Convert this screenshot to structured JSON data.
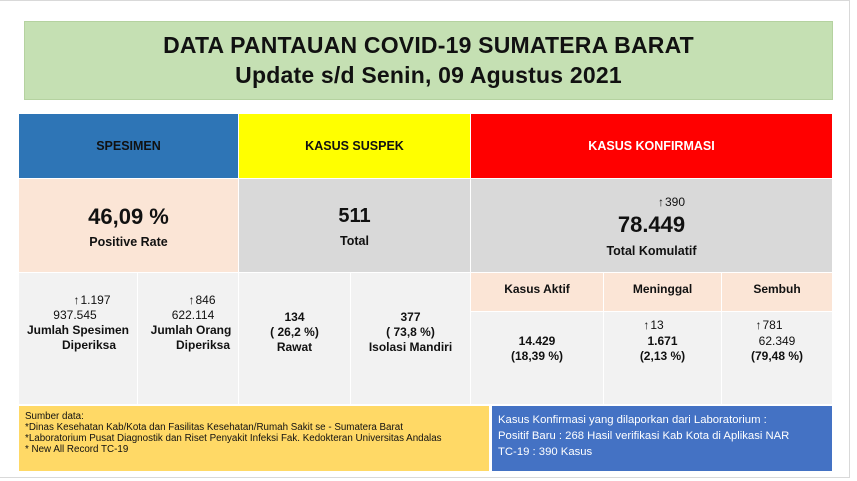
{
  "title": {
    "line1": "DATA PANTAUAN COVID-19 SUMATERA BARAT",
    "line2": "Update s/d Senin, 09 Agustus 2021"
  },
  "headers": {
    "spesimen": "SPESIMEN",
    "suspek": "KASUS SUSPEK",
    "konfirmasi": "KASUS KONFIRMASI"
  },
  "colors": {
    "title_bg": "#c5e0b3",
    "spesimen_header": "#2e75b6",
    "suspek_header": "#ffff00",
    "konfirmasi_header": "#ff0000",
    "source_bg": "#ffd966",
    "nar_bg": "#4472c4"
  },
  "spesimen": {
    "positive_rate": "46,09 %",
    "positive_rate_label": "Positive Rate",
    "jumlah_spesimen": {
      "increase_icon": "arrow-up-icon",
      "increase": "1.197",
      "value": "937.545",
      "label_line1": "Jumlah Spesimen",
      "label_line2": "Diperiksa"
    },
    "jumlah_orang": {
      "increase_icon": "arrow-up-icon",
      "increase": "846",
      "value": "622.114",
      "label_line1": "Jumlah Orang",
      "label_line2": "Diperiksa"
    }
  },
  "suspek": {
    "total": "511",
    "total_label": "Total",
    "rawat": {
      "value": "134",
      "pct": "( 26,2 %)",
      "label": "Rawat"
    },
    "isolasi": {
      "value": "377",
      "pct": "( 73,8 %)",
      "label": "Isolasi Mandiri"
    }
  },
  "konfirmasi": {
    "increase_icon": "arrow-up-icon",
    "increase": "390",
    "total": "78.449",
    "total_label": "Total Komulatif",
    "aktif": {
      "label": "Kasus Aktif",
      "value": "14.429",
      "pct": "(18,39 %)"
    },
    "meninggal": {
      "label": "Meninggal",
      "increase": "13",
      "value": "1.671",
      "pct": "(2,13 %)"
    },
    "sembuh": {
      "label": "Sembuh",
      "increase": "781",
      "value": "62.349",
      "pct": "(79,48 %)"
    }
  },
  "sources": {
    "heading": "Sumber data:",
    "line1": "*Dinas Kesehatan Kab/Kota  dan Fasilitas Kesehatan/Rumah Sakit se - Sumatera Barat",
    "line2": "*Laboratorium  Pusat Diagnostik dan Riset  Penyakit Infeksi Fak. Kedokteran Universitas Andalas",
    "line3": "* New All Record TC-19"
  },
  "nar_note": {
    "line1": "Kasus Konfirmasi yang dilaporkan dari Laboratorium :",
    "line2": "Positif Baru : 268 Hasil verifikasi Kab Kota di Aplikasi NAR",
    "line3": "TC-19 : 390 Kasus"
  }
}
